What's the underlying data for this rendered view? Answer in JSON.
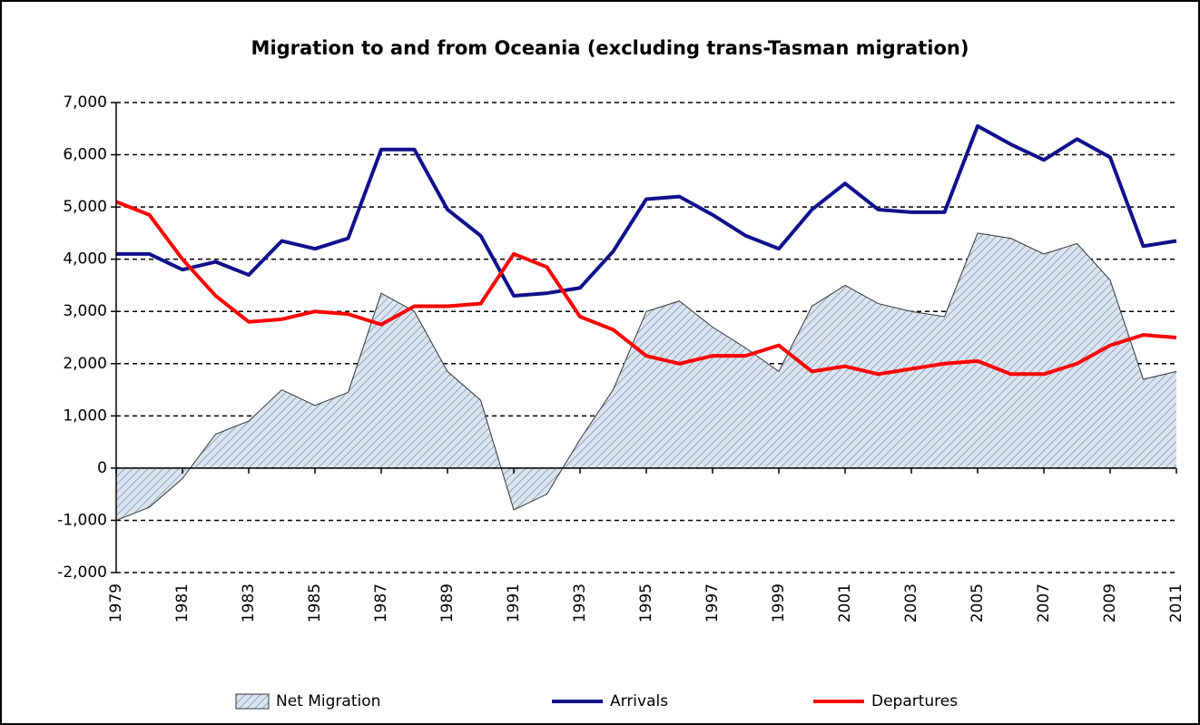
{
  "chart_data": {
    "type": "line",
    "title": "Migration to and from Oceania (excluding trans-Tasman migration)",
    "x": [
      1979,
      1980,
      1981,
      1982,
      1983,
      1984,
      1985,
      1986,
      1987,
      1988,
      1989,
      1990,
      1991,
      1992,
      1993,
      1994,
      1995,
      1996,
      1997,
      1998,
      1999,
      2000,
      2001,
      2002,
      2003,
      2004,
      2005,
      2006,
      2007,
      2008,
      2009,
      2010,
      2011
    ],
    "series": [
      {
        "name": "Net Migration",
        "kind": "area",
        "color": "#c6d9f1",
        "values": [
          -1000,
          -750,
          -200,
          650,
          900,
          1500,
          1200,
          1450,
          3350,
          3000,
          1850,
          1300,
          -800,
          -500,
          550,
          1500,
          3000,
          3200,
          2700,
          2300,
          1850,
          3100,
          3500,
          3150,
          3000,
          2900,
          4500,
          4400,
          4100,
          4300,
          3600,
          1700,
          1850
        ]
      },
      {
        "name": "Arrivals",
        "color": "#10108c",
        "values": [
          4100,
          4100,
          3800,
          3950,
          3700,
          4350,
          4200,
          4400,
          6100,
          6100,
          4950,
          4450,
          3300,
          3350,
          3450,
          4150,
          5150,
          5200,
          4850,
          4450,
          4200,
          4950,
          5450,
          4950,
          4900,
          4900,
          6550,
          6200,
          5900,
          6300,
          5950,
          4250,
          4350
        ]
      },
      {
        "name": "Departures",
        "color": "#ff0000",
        "values": [
          5100,
          4850,
          4000,
          3300,
          2800,
          2850,
          3000,
          2950,
          2750,
          3100,
          3100,
          3150,
          4100,
          3850,
          2900,
          2650,
          2150,
          2000,
          2150,
          2150,
          2350,
          1850,
          1950,
          1800,
          1900,
          2000,
          2050,
          1800,
          1800,
          2000,
          2350,
          2550,
          2500
        ]
      }
    ],
    "xlim": [
      1979,
      2011
    ],
    "xticks": [
      1979,
      1981,
      1983,
      1985,
      1987,
      1989,
      1991,
      1993,
      1995,
      1997,
      1999,
      2001,
      2003,
      2005,
      2007,
      2009,
      2011
    ],
    "ylim": [
      -2000,
      7000
    ],
    "yticks": [
      {
        "value": -2000,
        "label": "-2,000"
      },
      {
        "value": -1000,
        "label": "-1,000"
      },
      0,
      {
        "value": 1000,
        "label": "1,000"
      },
      {
        "value": 2000,
        "label": "2,000"
      },
      {
        "value": 3000,
        "label": "3,000"
      },
      {
        "value": 4000,
        "label": "4,000"
      },
      {
        "value": 5000,
        "label": "5,000"
      },
      {
        "value": 6000,
        "label": "6,000"
      },
      {
        "value": 7000,
        "label": "7,000"
      }
    ],
    "grid": true,
    "legend": "bottom"
  }
}
